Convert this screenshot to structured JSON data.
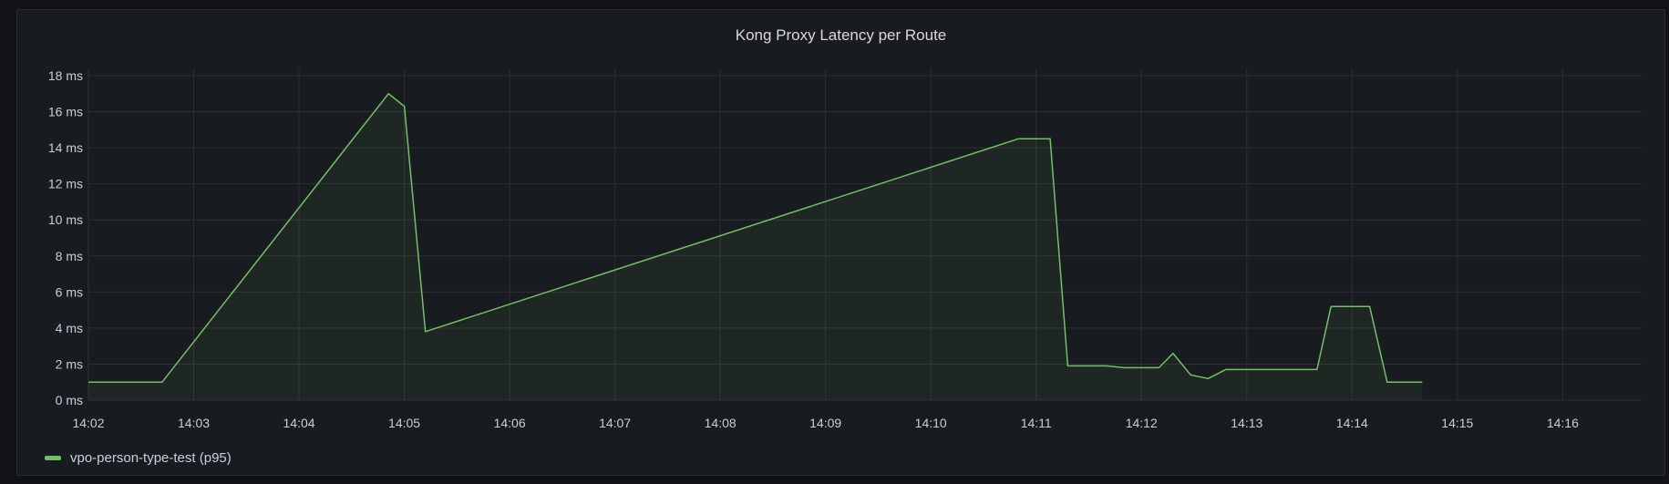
{
  "panel": {
    "title": "Kong Proxy Latency per Route"
  },
  "chart_data": {
    "type": "area",
    "title": "Kong Proxy Latency per Route",
    "xlabel": "",
    "ylabel": "",
    "y_unit": "ms",
    "ylim": [
      0,
      18
    ],
    "y_ticks": [
      "0 ms",
      "2 ms",
      "4 ms",
      "6 ms",
      "8 ms",
      "10 ms",
      "12 ms",
      "14 ms",
      "16 ms",
      "18 ms"
    ],
    "x_ticks": [
      "14:02",
      "14:03",
      "14:04",
      "14:05",
      "14:06",
      "14:07",
      "14:08",
      "14:09",
      "14:10",
      "14:11",
      "14:12",
      "14:13",
      "14:14",
      "14:15",
      "14:16"
    ],
    "xlim": [
      "14:02:00",
      "14:16:45"
    ],
    "grid": true,
    "legend_position": "bottom-left",
    "series": [
      {
        "name": "vpo-person-type-test (p95)",
        "color": "#73bf69",
        "x": [
          "14:02:00",
          "14:02:42",
          "14:04:51",
          "14:05:00",
          "14:05:12",
          "14:10:50",
          "14:11:08",
          "14:11:18",
          "14:11:40",
          "14:11:50",
          "14:12:10",
          "14:12:18",
          "14:12:28",
          "14:12:38",
          "14:12:48",
          "14:13:08",
          "14:13:18",
          "14:13:40",
          "14:13:48",
          "14:14:10",
          "14:14:20",
          "14:14:40"
        ],
        "values": [
          1.0,
          1.0,
          17.0,
          16.3,
          3.8,
          14.5,
          14.5,
          1.9,
          1.9,
          1.8,
          1.8,
          2.6,
          1.4,
          1.2,
          1.7,
          1.7,
          1.7,
          1.7,
          5.2,
          5.2,
          1.0,
          1.0
        ]
      }
    ]
  },
  "legend": {
    "items": [
      {
        "label": "vpo-person-type-test (p95)",
        "color": "#73bf69"
      }
    ]
  }
}
